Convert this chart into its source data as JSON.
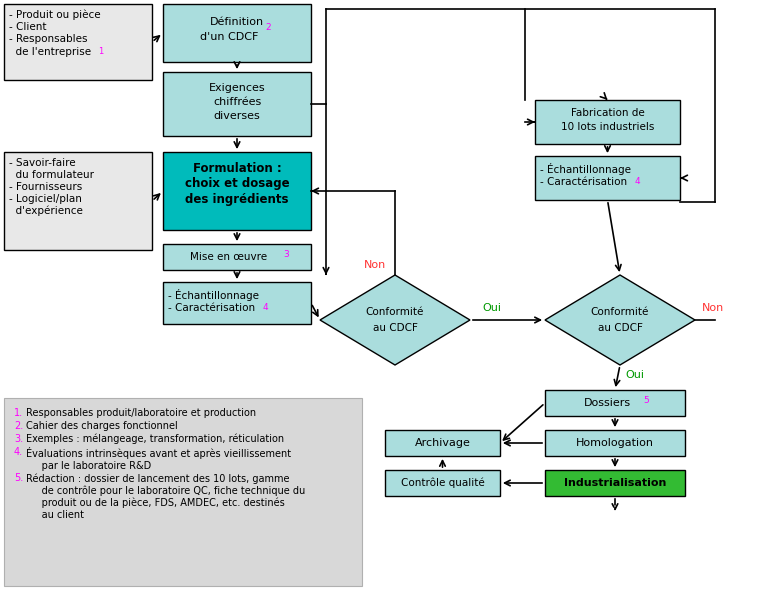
{
  "bg_color": "#ffffff",
  "light_blue": "#aadddd",
  "teal": "#00bbbb",
  "green": "#33bb33",
  "light_gray": "#e8e8e8",
  "note_bg": "#d8d8d8",
  "magenta": "#ff00ff",
  "red_label": "#ff3333",
  "green_label": "#009900",
  "black": "#000000",
  "notes": [
    {
      "num": "1",
      "text": "Responsables produit/laboratoire et production"
    },
    {
      "num": "2",
      "text": "Cahier des charges fonctionnel"
    },
    {
      "num": "3",
      "text": "Exemples : mélangeage, transformation, réticulation"
    },
    {
      "num": "4",
      "text": "Évaluations intrinsèques avant et après vieillissement\n     par le laboratoire R&D"
    },
    {
      "num": "5",
      "text": "Rédaction : dossier de lancement des 10 lots, gamme\n     de contrôle pour le laboratoire QC, fiche technique du\n     produit ou de la pièce, FDS, AMDEC, etc. destinés\n     au client"
    }
  ]
}
